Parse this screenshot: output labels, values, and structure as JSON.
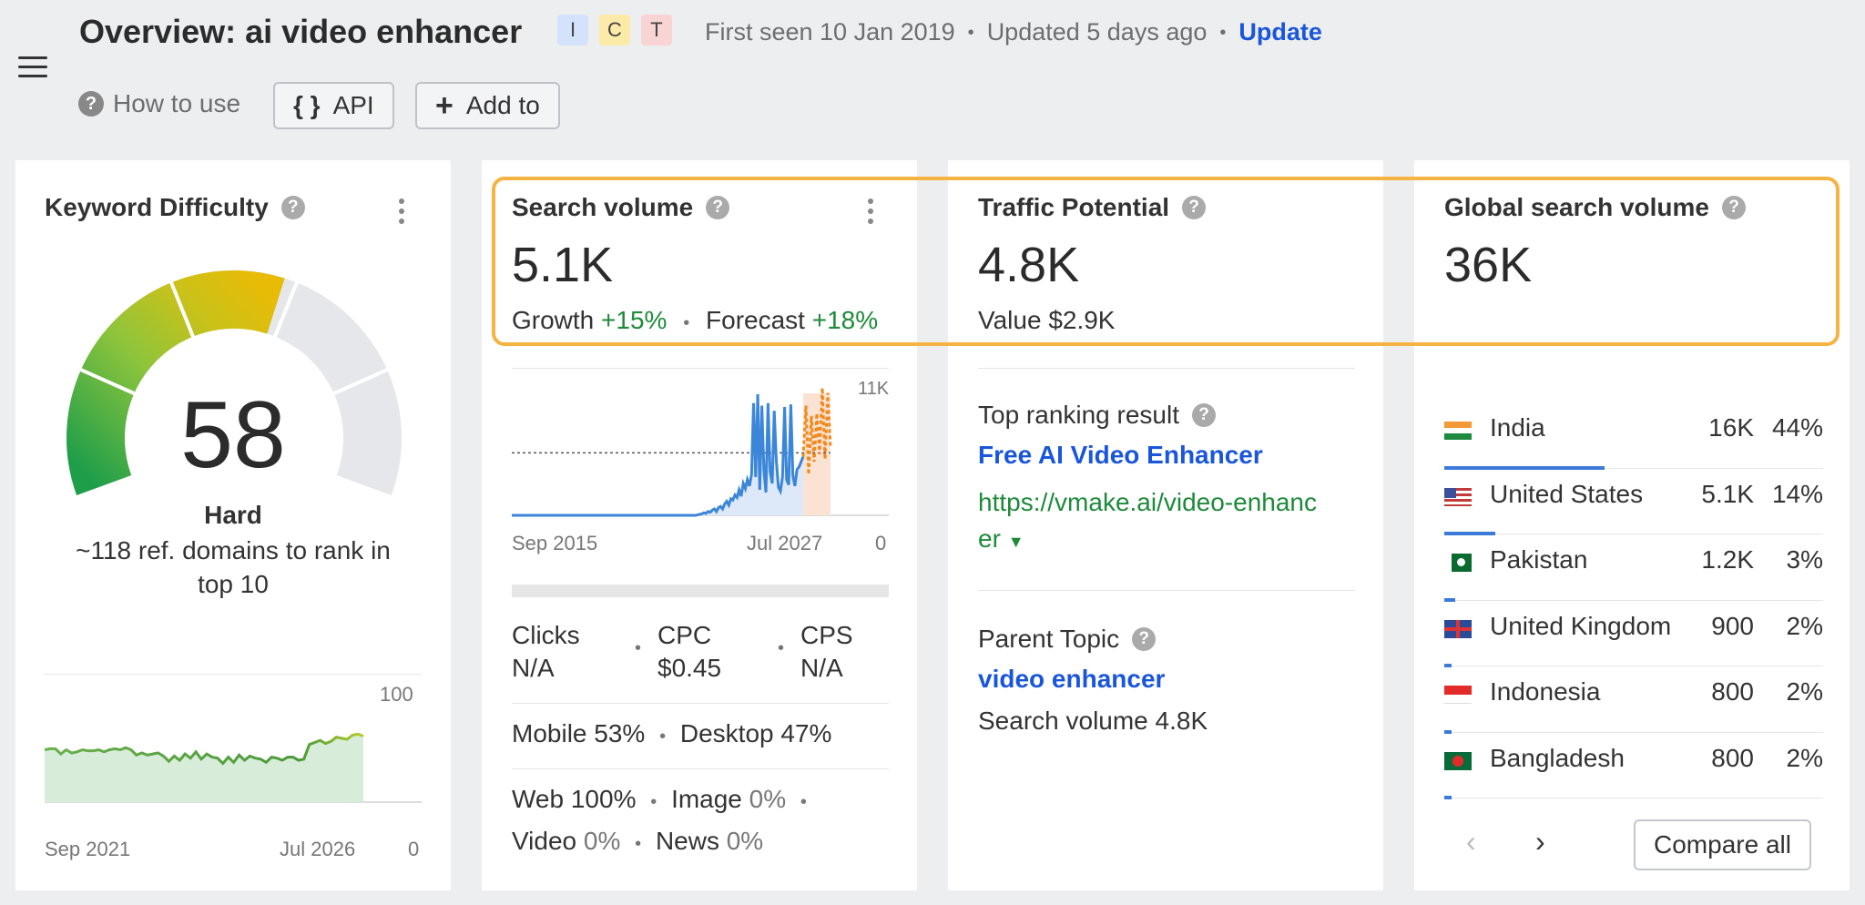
{
  "header": {
    "title": "Overview: ai video enhancer",
    "intent_badges": [
      {
        "label": "I",
        "color": "#d4e3fb"
      },
      {
        "label": "C",
        "color": "#fbeaa8"
      },
      {
        "label": "T",
        "color": "#f9d4d4"
      }
    ],
    "first_seen": "First seen 10 Jan 2019",
    "updated": "Updated 5 days ago",
    "update_link": "Update",
    "how_to_use": "How to use",
    "api_label": "API",
    "add_to_label": "Add to"
  },
  "keyword_difficulty": {
    "title": "Keyword Difficulty",
    "score": "58",
    "score_value": 58,
    "level": "Hard",
    "note": "~118 ref. domains to rank in top 10",
    "chart_max": "100",
    "chart_min": "0",
    "x_start": "Sep 2021",
    "x_end": "Jul 2026"
  },
  "search_volume": {
    "title": "Search volume",
    "value": "5.1K",
    "growth_label": "Growth",
    "growth": "+15%",
    "forecast_label": "Forecast",
    "forecast": "+18%",
    "chart_max": "11K",
    "chart_min": "0",
    "x_start": "Sep 2015",
    "x_end": "Jul 2027",
    "clicks_label": "Clicks",
    "clicks": "N/A",
    "cpc_label": "CPC",
    "cpc": "$0.45",
    "cps_label": "CPS",
    "cps": "N/A",
    "mobile": "Mobile 53%",
    "desktop": "Desktop 47%",
    "web_label": "Web",
    "web": "100%",
    "image_label": "Image",
    "image": "0%",
    "video_label": "Video",
    "video": "0%",
    "news_label": "News",
    "news": "0%"
  },
  "traffic_potential": {
    "title": "Traffic Potential",
    "value": "4.8K",
    "value_text": "Value $2.9K",
    "top_result_label": "Top ranking result",
    "top_result_title": "Free AI Video Enhancer",
    "top_result_url_1": "https://vmake.ai/video-enhanc",
    "top_result_url_2": "er",
    "parent_topic_label": "Parent Topic",
    "parent_topic": "video enhancer",
    "parent_volume": "Search volume 4.8K"
  },
  "global_volume": {
    "title": "Global search volume",
    "value": "36K",
    "countries": [
      {
        "name": "India",
        "volume": "16K",
        "share": "44%",
        "fraction": 0.44
      },
      {
        "name": "United States",
        "volume": "5.1K",
        "share": "14%",
        "fraction": 0.14
      },
      {
        "name": "Pakistan",
        "volume": "1.2K",
        "share": "3%",
        "fraction": 0.03
      },
      {
        "name": "United Kingdom",
        "volume": "900",
        "share": "2%",
        "fraction": 0.02
      },
      {
        "name": "Indonesia",
        "volume": "800",
        "share": "2%",
        "fraction": 0.02
      },
      {
        "name": "Bangladesh",
        "volume": "800",
        "share": "2%",
        "fraction": 0.02
      }
    ],
    "compare_label": "Compare all"
  },
  "chart_data": [
    {
      "type": "area",
      "title": "",
      "ylim": [
        0,
        100
      ],
      "x_start": "Sep 2021",
      "x_end": "Jul 2026",
      "values": [
        50,
        51,
        51,
        46,
        50,
        47,
        48,
        50,
        49,
        49,
        50,
        48,
        50,
        51,
        50,
        52,
        50,
        45,
        47,
        45,
        46,
        47,
        44,
        39,
        44,
        40,
        46,
        42,
        48,
        41,
        46,
        43,
        42,
        37,
        43,
        38,
        45,
        40,
        44,
        42,
        41,
        38,
        43,
        42,
        40,
        43,
        43,
        40,
        41,
        55,
        57,
        59,
        56,
        58,
        62,
        61,
        60,
        64,
        65,
        63
      ]
    },
    {
      "type": "line",
      "title": "",
      "ylim": [
        0,
        11000
      ],
      "x_start": "Sep 2015",
      "x_end": "Jul 2027",
      "reference_line": 4900,
      "values": [
        0,
        0,
        0,
        0,
        0,
        0,
        0,
        0,
        0,
        0,
        0,
        0,
        0,
        0,
        0,
        0,
        0,
        0,
        0,
        0,
        0,
        0,
        0,
        0,
        0,
        0,
        0,
        0,
        0,
        0,
        0,
        0,
        0,
        0,
        0,
        0,
        0,
        0,
        0,
        0,
        0,
        0,
        0,
        0,
        0,
        0,
        0,
        0,
        0,
        0,
        0,
        0,
        0,
        0,
        0,
        0,
        0,
        0,
        0,
        0,
        0,
        0,
        0,
        0,
        0,
        0,
        0,
        0,
        0,
        0,
        0,
        0,
        0,
        0,
        0,
        0,
        0,
        0,
        0,
        0,
        0,
        0,
        0,
        0,
        0,
        0,
        0,
        0,
        0,
        0,
        50,
        80,
        120,
        200,
        150,
        300,
        250,
        400,
        500,
        300,
        600,
        700,
        500,
        900,
        1100,
        800,
        1300,
        1200,
        1600,
        1400,
        2000,
        1500,
        2500,
        2100,
        2800,
        2300,
        3200,
        8800,
        3000,
        9500,
        2000,
        8600,
        3500,
        1800,
        8800,
        3400,
        2500,
        8200,
        4300,
        2200,
        1900,
        3000,
        8500,
        2800,
        2400,
        8700,
        3100,
        2300,
        3600,
        3800,
        4200,
        4600
      ],
      "forecast_values": [
        4600,
        8600,
        3200,
        7800,
        4200,
        8000,
        4800,
        10000,
        4400,
        9600,
        5300
      ]
    }
  ]
}
